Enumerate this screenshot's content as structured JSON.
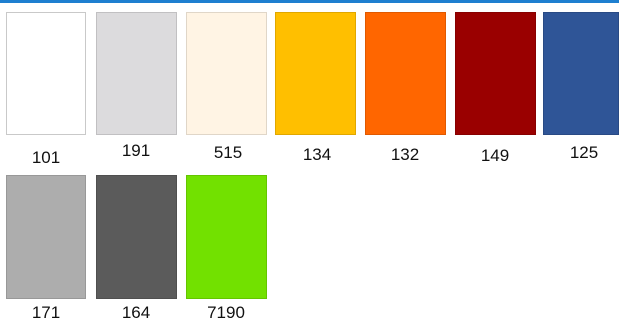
{
  "header": {
    "accent_color": "#1e7fd0"
  },
  "swatches": [
    {
      "code": "101",
      "color": "#ffffff"
    },
    {
      "code": "191",
      "color": "#dcdbdd"
    },
    {
      "code": "515",
      "color": "#fff4e4"
    },
    {
      "code": "134",
      "color": "#ffbf00"
    },
    {
      "code": "132",
      "color": "#ff6600"
    },
    {
      "code": "149",
      "color": "#9a0000"
    },
    {
      "code": "125",
      "color": "#2f5597"
    },
    {
      "code": "171",
      "color": "#adadad"
    },
    {
      "code": "164",
      "color": "#5b5b5b"
    },
    {
      "code": "7190",
      "color": "#72e100"
    }
  ]
}
